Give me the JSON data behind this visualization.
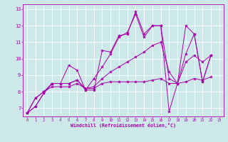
{
  "background_color": "#cce8e8",
  "line_color": "#aa00aa",
  "xlabel": "Windchill (Refroidissement éolien,°C)",
  "tick_color": "#aa00aa",
  "grid_color": "#ffffff",
  "xlim": [
    -0.5,
    23.5
  ],
  "ylim": [
    6.5,
    13.3
  ],
  "yticks": [
    7,
    8,
    9,
    10,
    11,
    12,
    13
  ],
  "xticks": [
    0,
    1,
    2,
    3,
    4,
    5,
    6,
    7,
    8,
    9,
    10,
    11,
    12,
    13,
    14,
    15,
    16,
    17,
    18,
    19,
    20,
    21,
    22,
    23
  ],
  "series": [
    {
      "x": [
        0,
        1,
        2,
        3,
        4,
        5,
        6,
        7,
        8,
        9,
        10,
        11,
        12,
        13,
        14,
        15,
        16,
        17,
        18,
        19,
        20,
        21,
        22
      ],
      "y": [
        6.7,
        7.1,
        7.9,
        8.5,
        8.5,
        9.6,
        9.3,
        8.1,
        8.1,
        10.5,
        10.4,
        11.4,
        11.5,
        12.85,
        11.5,
        12.0,
        12.0,
        6.8,
        8.5,
        12.0,
        11.5,
        8.6,
        10.2
      ]
    },
    {
      "x": [
        0,
        1,
        2,
        3,
        4,
        5,
        6,
        7,
        8,
        9,
        10,
        11,
        12,
        13,
        14,
        15,
        16,
        17,
        18,
        19,
        20,
        21,
        22
      ],
      "y": [
        6.7,
        7.1,
        7.9,
        8.5,
        8.5,
        8.5,
        8.7,
        8.1,
        8.8,
        9.5,
        10.3,
        11.3,
        11.6,
        12.7,
        11.3,
        12.0,
        12.0,
        8.8,
        8.5,
        10.3,
        11.5,
        8.6,
        10.2
      ]
    },
    {
      "x": [
        0,
        1,
        2,
        3,
        4,
        5,
        6,
        7,
        8,
        9,
        10,
        11,
        12,
        13,
        14,
        15,
        16,
        17,
        18,
        19,
        20,
        21,
        22
      ],
      "y": [
        6.7,
        7.6,
        8.0,
        8.5,
        8.5,
        8.5,
        8.7,
        8.2,
        8.3,
        8.8,
        9.2,
        9.5,
        9.8,
        10.1,
        10.4,
        10.8,
        11.0,
        9.2,
        8.5,
        9.8,
        10.2,
        9.8,
        10.2
      ]
    },
    {
      "x": [
        0,
        1,
        2,
        3,
        4,
        5,
        6,
        7,
        8,
        9,
        10,
        11,
        12,
        13,
        14,
        15,
        16,
        17,
        18,
        19,
        20,
        21,
        22
      ],
      "y": [
        6.7,
        7.6,
        8.0,
        8.3,
        8.3,
        8.3,
        8.5,
        8.2,
        8.2,
        8.5,
        8.6,
        8.6,
        8.6,
        8.6,
        8.6,
        8.7,
        8.8,
        8.5,
        8.5,
        8.6,
        8.8,
        8.7,
        8.9
      ]
    }
  ]
}
